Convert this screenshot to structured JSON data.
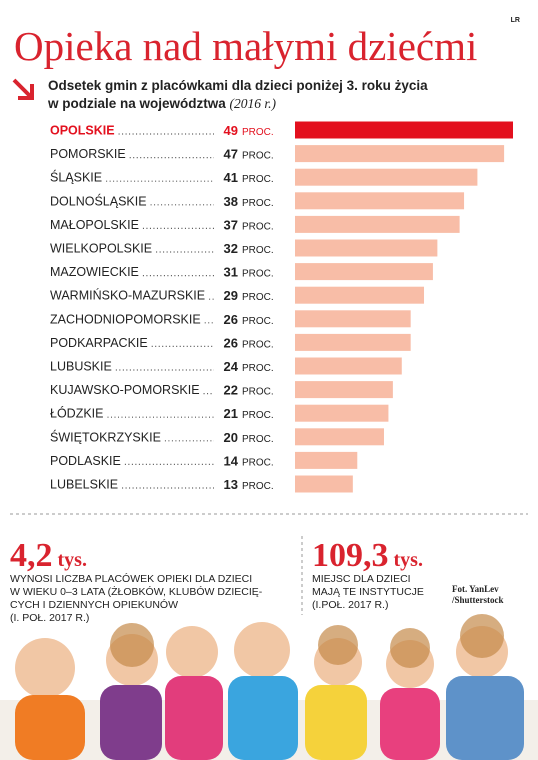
{
  "brand": "LR",
  "chart_data": {
    "type": "bar",
    "title": "Opieka nad małymi dziećmi",
    "subtitle_lines": [
      "Odsetek gmin z placówkami dla dzieci poniżej 3. roku życia",
      "w podziale na województwa"
    ],
    "subtitle_note": "(2016 r.)",
    "unit": "proc.",
    "categories": [
      "OPOLSKIE",
      "POMORSKIE",
      "ŚLĄSKIE",
      "DOLNOŚLĄSKIE",
      "MAŁOPOLSKIE",
      "WIELKOPOLSKIE",
      "MAZOWIECKIE",
      "WARMIŃSKO-MAZURSKIE",
      "ZACHODNIOPOMORSKIE",
      "PODKARPACKIE",
      "LUBUSKIE",
      "KUJAWSKO-POMORSKIE",
      "ŁÓDZKIE",
      "ŚWIĘTOKRZYSKIE",
      "PODLASKIE",
      "LUBELSKIE"
    ],
    "values": [
      49,
      47,
      41,
      38,
      37,
      32,
      31,
      29,
      26,
      26,
      24,
      22,
      21,
      20,
      14,
      13
    ],
    "color": "#f8bda7",
    "highlight_category": "OPOLSKIE",
    "highlight_color": "#e3101e"
  },
  "stats": [
    {
      "value": "4,2",
      "unit": "tys.",
      "lines": [
        "WYNOSI LICZBA PLACÓWEK OPIEKI DLA DZIECI",
        "W WIEKU 0–3 LATA (ŻŁOBKÓW, KLUBÓW DZIECIĘ-",
        "CYCH I DZIENNYCH OPIEKUNÓW",
        "(I. POŁ. 2017 R.)"
      ]
    },
    {
      "value": "109,3",
      "unit": "tys.",
      "lines": [
        "MIEJSC DLA DZIECI",
        "MAJĄ TE INSTYTUCJE",
        "(I.POŁ. 2017 R.)"
      ]
    }
  ],
  "photo_credit": [
    "Fot. YanLev",
    "/Shutterstock"
  ]
}
